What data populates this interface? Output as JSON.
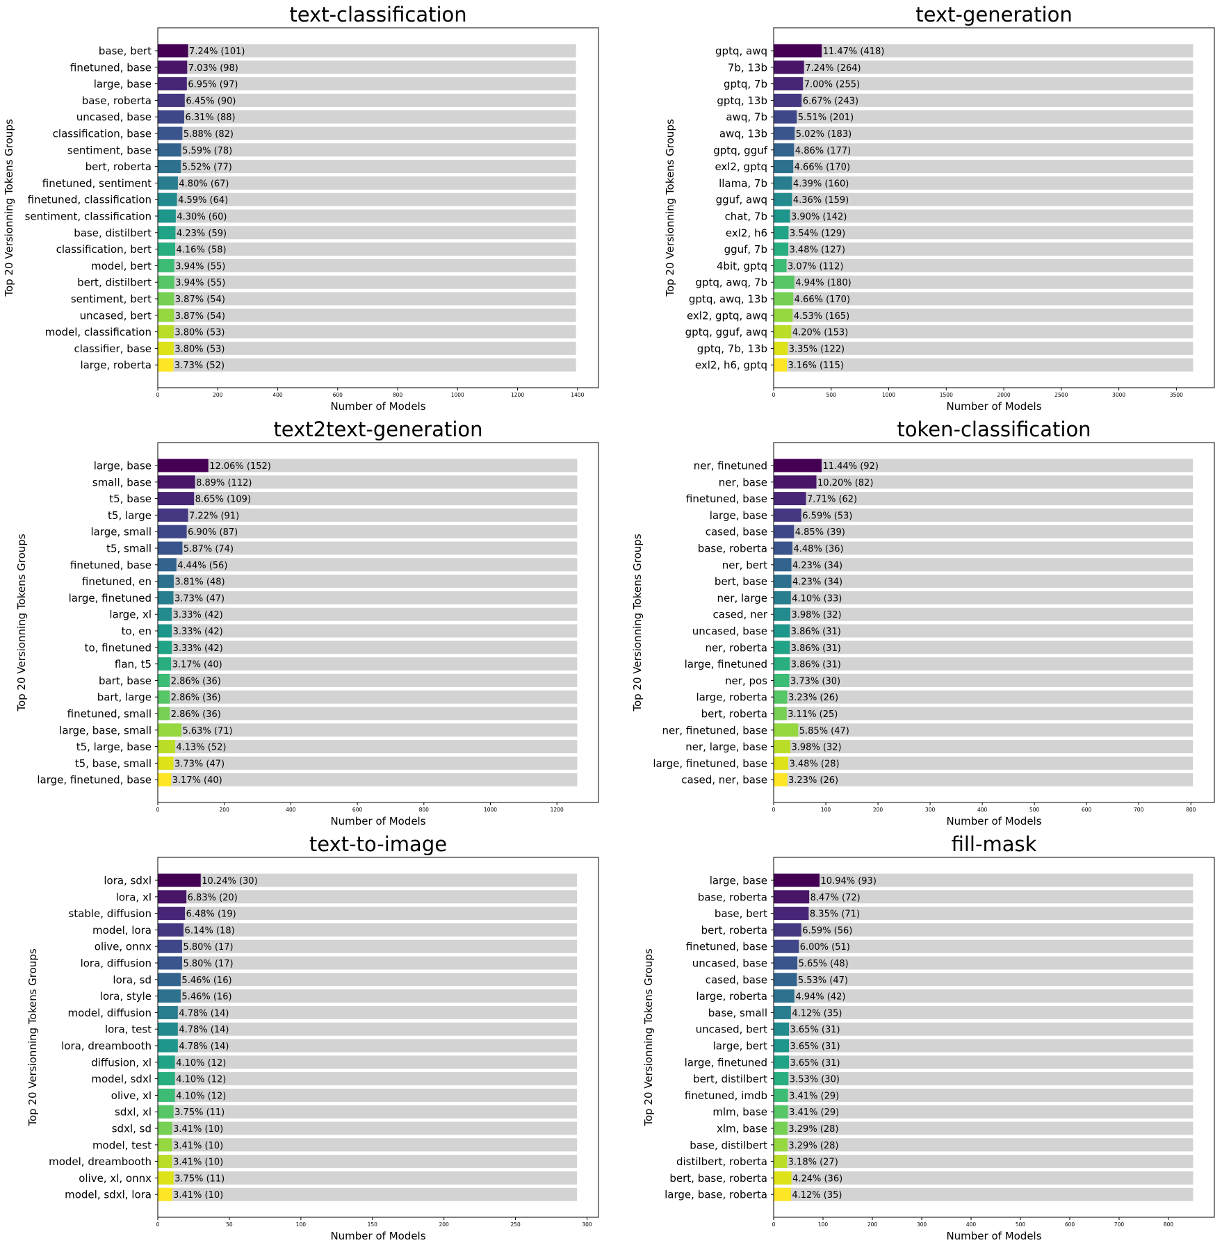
{
  "chart_data": [
    {
      "type": "bar",
      "orientation": "horizontal",
      "title": "text-classification",
      "xlabel": "Number of Models",
      "ylabel": "Top 20 Versionning Tokens Groups",
      "xlim": [
        0,
        1470
      ],
      "xticks": [
        0,
        200,
        400,
        600,
        800,
        1000,
        1200,
        1400
      ],
      "total": 1395,
      "categories": [
        "base, bert",
        "finetuned, base",
        "large, base",
        "base, roberta",
        "uncased, base",
        "classification, base",
        "sentiment, base",
        "bert, roberta",
        "finetuned, sentiment",
        "finetuned, classification",
        "sentiment, classification",
        "base, distilbert",
        "classification, bert",
        "model, bert",
        "bert, distilbert",
        "sentiment, bert",
        "uncased, bert",
        "model, classification",
        "classifier, base",
        "large, roberta"
      ],
      "values": [
        101,
        98,
        97,
        90,
        88,
        82,
        78,
        77,
        67,
        64,
        60,
        59,
        58,
        55,
        55,
        54,
        54,
        53,
        53,
        52
      ],
      "labels": [
        "7.24% (101)",
        "7.03% (98)",
        "6.95% (97)",
        "6.45% (90)",
        "6.31% (88)",
        "5.88% (82)",
        "5.59% (78)",
        "5.52% (77)",
        "4.80% (67)",
        "4.59% (64)",
        "4.30% (60)",
        "4.23% (59)",
        "4.16% (58)",
        "3.94% (55)",
        "3.94% (55)",
        "3.87% (54)",
        "3.87% (54)",
        "3.80% (53)",
        "3.80% (53)",
        "3.73% (52)"
      ]
    },
    {
      "type": "bar",
      "orientation": "horizontal",
      "title": "text-generation",
      "xlabel": "Number of Models",
      "ylabel": "Top 20 Versionning Tokens Groups",
      "xlim": [
        0,
        3830
      ],
      "xticks": [
        0,
        500,
        1000,
        1500,
        2000,
        2500,
        3000,
        3500
      ],
      "total": 3645,
      "categories": [
        "gptq, awq",
        "7b, 13b",
        "gptq, 7b",
        "gptq, 13b",
        "awq, 7b",
        "awq, 13b",
        "gptq, gguf",
        "exl2, gptq",
        "llama, 7b",
        "gguf, awq",
        "chat, 7b",
        "exl2, h6",
        "gguf, 7b",
        "4bit, gptq",
        "gptq, awq, 7b",
        "gptq, awq, 13b",
        "exl2, gptq, awq",
        "gptq, gguf, awq",
        "gptq, 7b, 13b",
        "exl2, h6, gptq"
      ],
      "values": [
        418,
        264,
        255,
        243,
        201,
        183,
        177,
        170,
        160,
        159,
        142,
        129,
        127,
        112,
        180,
        170,
        165,
        153,
        122,
        115
      ],
      "labels": [
        "11.47% (418)",
        "7.24% (264)",
        "7.00% (255)",
        "6.67% (243)",
        "5.51% (201)",
        "5.02% (183)",
        "4.86% (177)",
        "4.66% (170)",
        "4.39% (160)",
        "4.36% (159)",
        "3.90% (142)",
        "3.54% (129)",
        "3.48% (127)",
        "3.07% (112)",
        "4.94% (180)",
        "4.66% (170)",
        "4.53% (165)",
        "4.20% (153)",
        "3.35% (122)",
        "3.16% (115)"
      ]
    },
    {
      "type": "bar",
      "orientation": "horizontal",
      "title": "text2text-generation",
      "xlabel": "Number of Models",
      "ylabel": "Top 20 Versionning Tokens Groups",
      "xlim": [
        0,
        1325
      ],
      "xticks": [
        0,
        200,
        400,
        600,
        800,
        1000,
        1200
      ],
      "total": 1261,
      "categories": [
        "large, base",
        "small, base",
        "t5, base",
        "t5, large",
        "large, small",
        "t5, small",
        "finetuned, base",
        "finetuned, en",
        "large, finetuned",
        "large, xl",
        "to, en",
        "to, finetuned",
        "flan, t5",
        "bart, base",
        "bart, large",
        "finetuned, small",
        "large, base, small",
        "t5, large, base",
        "t5, base, small",
        "large, finetuned, base"
      ],
      "values": [
        152,
        112,
        109,
        91,
        87,
        74,
        56,
        48,
        47,
        42,
        42,
        42,
        40,
        36,
        36,
        36,
        71,
        52,
        47,
        40
      ],
      "labels": [
        "12.06% (152)",
        "8.89% (112)",
        "8.65% (109)",
        "7.22% (91)",
        "6.90% (87)",
        "5.87% (74)",
        "4.44% (56)",
        "3.81% (48)",
        "3.73% (47)",
        "3.33% (42)",
        "3.33% (42)",
        "3.33% (42)",
        "3.17% (40)",
        "2.86% (36)",
        "2.86% (36)",
        "2.86% (36)",
        "5.63% (71)",
        "4.13% (52)",
        "3.73% (47)",
        "3.17% (40)"
      ]
    },
    {
      "type": "bar",
      "orientation": "horizontal",
      "title": "token-classification",
      "xlabel": "Number of Models",
      "ylabel": "Top 20 Versionning Tokens Groups",
      "xlim": [
        0,
        845
      ],
      "xticks": [
        0,
        100,
        200,
        300,
        400,
        500,
        600,
        700,
        800
      ],
      "total": 804,
      "categories": [
        "ner, finetuned",
        "ner, base",
        "finetuned, base",
        "large, base",
        "cased, base",
        "base, roberta",
        "ner, bert",
        "bert, base",
        "ner, large",
        "cased, ner",
        "uncased, base",
        "ner, roberta",
        "large, finetuned",
        "ner, pos",
        "large, roberta",
        "bert, roberta",
        "ner, finetuned, base",
        "ner, large, base",
        "large, finetuned, base",
        "cased, ner, base"
      ],
      "values": [
        92,
        82,
        62,
        53,
        39,
        36,
        34,
        34,
        33,
        32,
        31,
        31,
        31,
        30,
        26,
        25,
        47,
        32,
        28,
        26
      ],
      "labels": [
        "11.44% (92)",
        "10.20% (82)",
        "7.71% (62)",
        "6.59% (53)",
        "4.85% (39)",
        "4.48% (36)",
        "4.23% (34)",
        "4.23% (34)",
        "4.10% (33)",
        "3.98% (32)",
        "3.86% (31)",
        "3.86% (31)",
        "3.86% (31)",
        "3.73% (30)",
        "3.23% (26)",
        "3.11% (25)",
        "5.85% (47)",
        "3.98% (32)",
        "3.48% (28)",
        "3.23% (26)"
      ]
    },
    {
      "type": "bar",
      "orientation": "horizontal",
      "title": "text-to-image",
      "xlabel": "Number of Models",
      "ylabel": "Top 20 Versionning Tokens Groups",
      "xlim": [
        0,
        308
      ],
      "xticks": [
        0,
        50,
        100,
        150,
        200,
        250,
        300
      ],
      "total": 293,
      "categories": [
        "lora, sdxl",
        "lora, xl",
        "stable, diffusion",
        "model, lora",
        "olive, onnx",
        "lora, diffusion",
        "lora, sd",
        "lora, style",
        "model, diffusion",
        "lora, test",
        "lora, dreambooth",
        "diffusion, xl",
        "model, sdxl",
        "olive, xl",
        "sdxl, xl",
        "sdxl, sd",
        "model, test",
        "model, dreambooth",
        "olive, xl, onnx",
        "model, sdxl, lora"
      ],
      "values": [
        30,
        20,
        19,
        18,
        17,
        17,
        16,
        16,
        14,
        14,
        14,
        12,
        12,
        12,
        11,
        10,
        10,
        10,
        11,
        10
      ],
      "labels": [
        "10.24% (30)",
        "6.83% (20)",
        "6.48% (19)",
        "6.14% (18)",
        "5.80% (17)",
        "5.80% (17)",
        "5.46% (16)",
        "5.46% (16)",
        "4.78% (14)",
        "4.78% (14)",
        "4.78% (14)",
        "4.10% (12)",
        "4.10% (12)",
        "4.10% (12)",
        "3.75% (11)",
        "3.41% (10)",
        "3.41% (10)",
        "3.41% (10)",
        "3.75% (11)",
        "3.41% (10)"
      ]
    },
    {
      "type": "bar",
      "orientation": "horizontal",
      "title": "fill-mask",
      "xlabel": "Number of Models",
      "ylabel": "Top 20 Versionning Tokens Groups",
      "xlim": [
        0,
        893
      ],
      "xticks": [
        0,
        100,
        200,
        300,
        400,
        500,
        600,
        700,
        800
      ],
      "total": 850,
      "categories": [
        "large, base",
        "base, roberta",
        "base, bert",
        "bert, roberta",
        "finetuned, base",
        "uncased, base",
        "cased, base",
        "large, roberta",
        "base, small",
        "uncased, bert",
        "large, bert",
        "large, finetuned",
        "bert, distilbert",
        "finetuned, imdb",
        "mlm, base",
        "xlm, base",
        "base, distilbert",
        "distilbert, roberta",
        "bert, base, roberta",
        "large, base, roberta"
      ],
      "values": [
        93,
        72,
        71,
        56,
        51,
        48,
        47,
        42,
        35,
        31,
        31,
        31,
        30,
        29,
        29,
        28,
        28,
        27,
        36,
        35
      ],
      "labels": [
        "10.94% (93)",
        "8.47% (72)",
        "8.35% (71)",
        "6.59% (56)",
        "6.00% (51)",
        "5.65% (48)",
        "5.53% (47)",
        "4.94% (42)",
        "4.12% (35)",
        "3.65% (31)",
        "3.65% (31)",
        "3.65% (31)",
        "3.53% (30)",
        "3.41% (29)",
        "3.41% (29)",
        "3.29% (28)",
        "3.29% (28)",
        "3.18% (27)",
        "4.24% (36)",
        "4.12% (35)"
      ]
    }
  ],
  "colors": {
    "background_bar": "#d3d3d3",
    "palette": [
      "#440154",
      "#481567",
      "#482677",
      "#453781",
      "#3f4788",
      "#39558c",
      "#32648e",
      "#2d718e",
      "#287d8e",
      "#238a8d",
      "#1f968b",
      "#20a386",
      "#29af7f",
      "#3cbc75",
      "#56c667",
      "#75d054",
      "#95d840",
      "#bade28",
      "#dde318",
      "#fde725"
    ]
  }
}
